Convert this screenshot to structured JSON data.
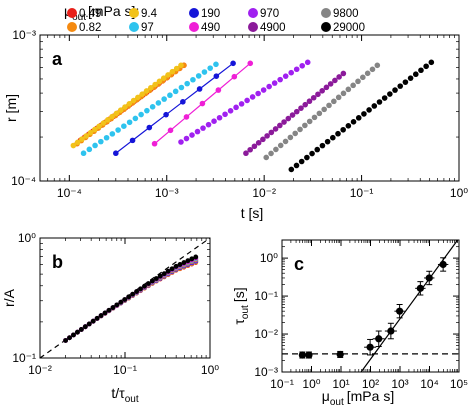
{
  "legend": {
    "title": "μ",
    "title_sub": "out",
    "title_units": "[mPa s]:",
    "entries": [
      {
        "label": "0.49",
        "color": "#e8201a"
      },
      {
        "label": "9.4",
        "color": "#f2c21a"
      },
      {
        "label": "190",
        "color": "#1515d8"
      },
      {
        "label": "970",
        "color": "#a020f0"
      },
      {
        "label": "9800",
        "color": "#858585"
      },
      {
        "label": "0.82",
        "color": "#f58a10"
      },
      {
        "label": "97",
        "color": "#2ec3ee"
      },
      {
        "label": "490",
        "color": "#ef1fd6"
      },
      {
        "label": "4900",
        "color": "#8b1a9a"
      },
      {
        "label": "29000",
        "color": "#000000"
      }
    ]
  },
  "chart_data": [
    {
      "panel": "a",
      "type": "scatter",
      "xlabel": "t [s]",
      "ylabel": "r [m]",
      "xscale": "log",
      "yscale": "log",
      "xlim": [
        5e-05,
        1
      ],
      "ylim": [
        0.0001,
        0.001
      ],
      "xticks": [
        "10⁻⁴",
        "10⁻³",
        "10⁻²",
        "10⁻¹",
        "10⁰"
      ],
      "yticks": [
        "10⁻⁴",
        "10⁻³"
      ],
      "series": [
        {
          "name": "0.49",
          "color": "#e8201a",
          "t_range": [
            0.00013,
            0.0015
          ],
          "r_range": [
            0.00019,
            0.00062
          ],
          "n": 26,
          "line": false
        },
        {
          "name": "0.82",
          "color": "#f58a10",
          "t_range": [
            0.00012,
            0.0015
          ],
          "r_range": [
            0.00018,
            0.00062
          ],
          "n": 26,
          "line": false
        },
        {
          "name": "9.4",
          "color": "#f2c21a",
          "t_range": [
            0.00011,
            0.0014
          ],
          "r_range": [
            0.000175,
            0.00062
          ],
          "n": 26,
          "line": false
        },
        {
          "name": "97",
          "color": "#2ec3ee",
          "t_range": [
            0.00014,
            0.0032
          ],
          "r_range": [
            0.000155,
            0.00063
          ],
          "n": 24,
          "line": false
        },
        {
          "name": "190",
          "color": "#1515d8",
          "t_range": [
            0.0003,
            0.0048
          ],
          "r_range": [
            0.000155,
            0.00064
          ],
          "n": 8,
          "line": true
        },
        {
          "name": "490",
          "color": "#ef1fd6",
          "t_range": [
            0.00075,
            0.0072
          ],
          "r_range": [
            0.00018,
            0.00064
          ],
          "n": 7,
          "line": true
        },
        {
          "name": "970",
          "color": "#a020f0",
          "t_range": [
            0.0014,
            0.028
          ],
          "r_range": [
            0.000185,
            0.00065
          ],
          "n": 24,
          "line": false
        },
        {
          "name": "4900",
          "color": "#8b1a9a",
          "t_range": [
            0.0065,
            0.065
          ],
          "r_range": [
            0.000155,
            0.000545
          ],
          "n": 24,
          "line": false
        },
        {
          "name": "9800",
          "color": "#858585",
          "t_range": [
            0.0105,
            0.145
          ],
          "r_range": [
            0.000145,
            0.00062
          ],
          "n": 24,
          "line": false
        },
        {
          "name": "29000",
          "color": "#000000",
          "t_range": [
            0.019,
            0.52
          ],
          "r_range": [
            0.00012,
            0.00065
          ],
          "n": 28,
          "line": false
        }
      ]
    },
    {
      "panel": "b",
      "type": "scatter",
      "xlabel": "t/τ",
      "xlabel_sub": "out",
      "ylabel": "r/A",
      "xscale": "log",
      "yscale": "log",
      "xlim": [
        0.01,
        1
      ],
      "ylim": [
        0.1,
        1
      ],
      "xticks": [
        "10⁻²",
        "10⁻¹",
        "10⁰"
      ],
      "yticks": [
        "10⁻¹",
        "10⁰"
      ],
      "reference_line": {
        "style": "dashed",
        "slope": 0.5,
        "points": [
          [
            0.01,
            0.1
          ],
          [
            1.0,
            1.0
          ]
        ]
      },
      "collapse_curve": {
        "x_range": [
          0.02,
          0.68
        ],
        "points": [
          [
            0.02,
            0.14
          ],
          [
            0.05,
            0.22
          ],
          [
            0.1,
            0.305
          ],
          [
            0.2,
            0.42
          ],
          [
            0.4,
            0.56
          ],
          [
            0.68,
            0.66
          ]
        ]
      }
    },
    {
      "panel": "c",
      "type": "scatter",
      "xlabel": "μ",
      "xlabel_sub": "out",
      "xlabel_units": "[mPa s]",
      "ylabel": "τ",
      "ylabel_sub": "out",
      "ylabel_units": "[s]",
      "xscale": "log",
      "yscale": "log",
      "xlim": [
        0.1,
        100000
      ],
      "ylim": [
        0.001,
        3
      ],
      "xticks": [
        "10⁻¹",
        "10⁰",
        "10¹",
        "10²",
        "10³",
        "10⁴",
        "10⁵"
      ],
      "yticks": [
        "10⁻³",
        "10⁻²",
        "10⁻¹",
        "10⁰"
      ],
      "points": [
        {
          "mu": 0.49,
          "tau": 0.0028,
          "err": 1.2
        },
        {
          "mu": 0.82,
          "tau": 0.0028,
          "err": 1.2
        },
        {
          "mu": 9.4,
          "tau": 0.0029,
          "err": 1.2
        },
        {
          "mu": 97,
          "tau": 0.0045,
          "err": 1.6
        },
        {
          "mu": 190,
          "tau": 0.0075,
          "err": 1.6
        },
        {
          "mu": 490,
          "tau": 0.012,
          "err": 1.6
        },
        {
          "mu": 970,
          "tau": 0.04,
          "err": 1.5
        },
        {
          "mu": 4900,
          "tau": 0.16,
          "err": 1.5
        },
        {
          "mu": 9800,
          "tau": 0.3,
          "err": 1.5
        },
        {
          "mu": 29000,
          "tau": 0.68,
          "err": 1.5
        }
      ],
      "fit_line": {
        "style": "solid",
        "points": [
          [
            48,
            0.001
          ],
          [
            90000,
            3
          ]
        ]
      },
      "plateau_line": {
        "style": "dashed",
        "tau": 0.003
      }
    }
  ]
}
